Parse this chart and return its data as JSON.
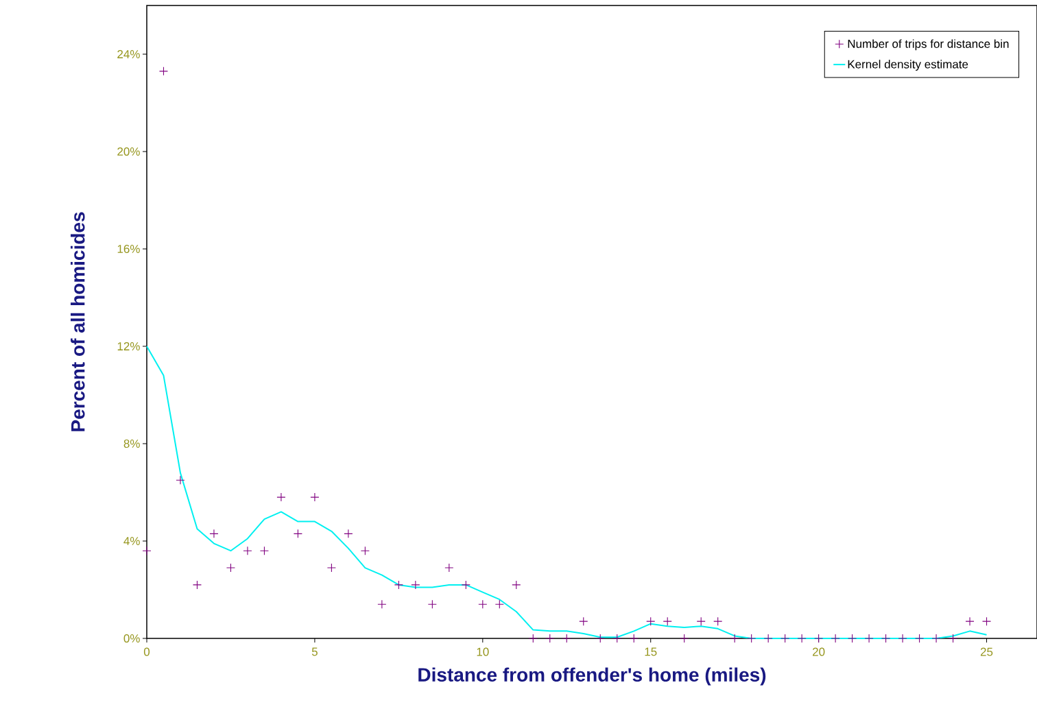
{
  "chart_data": {
    "type": "scatter",
    "xlabel": "Distance from offender's home (miles)",
    "ylabel": "Percent of all homicides",
    "xlim": [
      0,
      26.5
    ],
    "ylim": [
      0,
      26
    ],
    "xticks": [
      0,
      5,
      10,
      15,
      20,
      25
    ],
    "yticks": [
      {
        "value": 0,
        "label": "0%"
      },
      {
        "value": 4,
        "label": "4%"
      },
      {
        "value": 8,
        "label": "8%"
      },
      {
        "value": 12,
        "label": "12%"
      },
      {
        "value": 16,
        "label": "16%"
      },
      {
        "value": 20,
        "label": "20%"
      },
      {
        "value": 24,
        "label": "24%"
      }
    ],
    "legend": "top right",
    "series": [
      {
        "name": "Number of trips for distance bin",
        "marker": "cross",
        "color": "#800080",
        "x": [
          0,
          0.5,
          1,
          1.5,
          2,
          2.5,
          3,
          3.5,
          4,
          4.5,
          5,
          5.5,
          6,
          6.5,
          7,
          7.5,
          8,
          8.5,
          9,
          9.5,
          10,
          10.5,
          11,
          11.5,
          12,
          12.5,
          13,
          13.5,
          14,
          14.5,
          15,
          15.5,
          16,
          16.5,
          17,
          17.5,
          18,
          18.5,
          19,
          19.5,
          20,
          20.5,
          21,
          21.5,
          22,
          22.5,
          23,
          23.5,
          24,
          24.5,
          25
        ],
        "values": [
          3.6,
          23.3,
          6.5,
          2.2,
          4.3,
          2.9,
          3.6,
          3.6,
          5.8,
          4.3,
          5.8,
          2.9,
          4.3,
          3.6,
          1.4,
          2.2,
          2.2,
          1.4,
          2.9,
          2.2,
          1.4,
          1.4,
          2.2,
          0,
          0,
          0,
          0.7,
          0,
          0,
          0,
          0.7,
          0.7,
          0,
          0.7,
          0.7,
          0,
          0,
          0,
          0,
          0,
          0,
          0,
          0,
          0,
          0,
          0,
          0,
          0,
          0,
          0.7,
          0.7
        ]
      },
      {
        "name": "Kernel density estimate",
        "type": "line",
        "marker": "none",
        "color": "#00f0f0",
        "x": [
          0,
          0.5,
          1,
          1.5,
          2,
          2.5,
          3,
          3.5,
          4,
          4.5,
          5,
          5.5,
          6,
          6.5,
          7,
          7.5,
          8,
          8.5,
          9,
          9.5,
          10,
          10.5,
          11,
          11.5,
          12,
          12.5,
          13,
          13.5,
          14,
          14.5,
          15,
          15.5,
          16,
          16.5,
          17,
          17.5,
          18,
          19,
          20,
          21,
          22,
          23,
          23.5,
          24,
          24.5,
          25
        ],
        "values": [
          12.0,
          10.8,
          6.8,
          4.5,
          3.9,
          3.6,
          4.1,
          4.9,
          5.2,
          4.8,
          4.8,
          4.4,
          3.7,
          2.9,
          2.6,
          2.2,
          2.1,
          2.1,
          2.2,
          2.2,
          1.9,
          1.6,
          1.1,
          0.35,
          0.3,
          0.3,
          0.2,
          0.05,
          0.05,
          0.3,
          0.6,
          0.5,
          0.45,
          0.5,
          0.4,
          0.1,
          0,
          0,
          0,
          0,
          0,
          0,
          0,
          0.1,
          0.3,
          0.15
        ]
      }
    ]
  }
}
